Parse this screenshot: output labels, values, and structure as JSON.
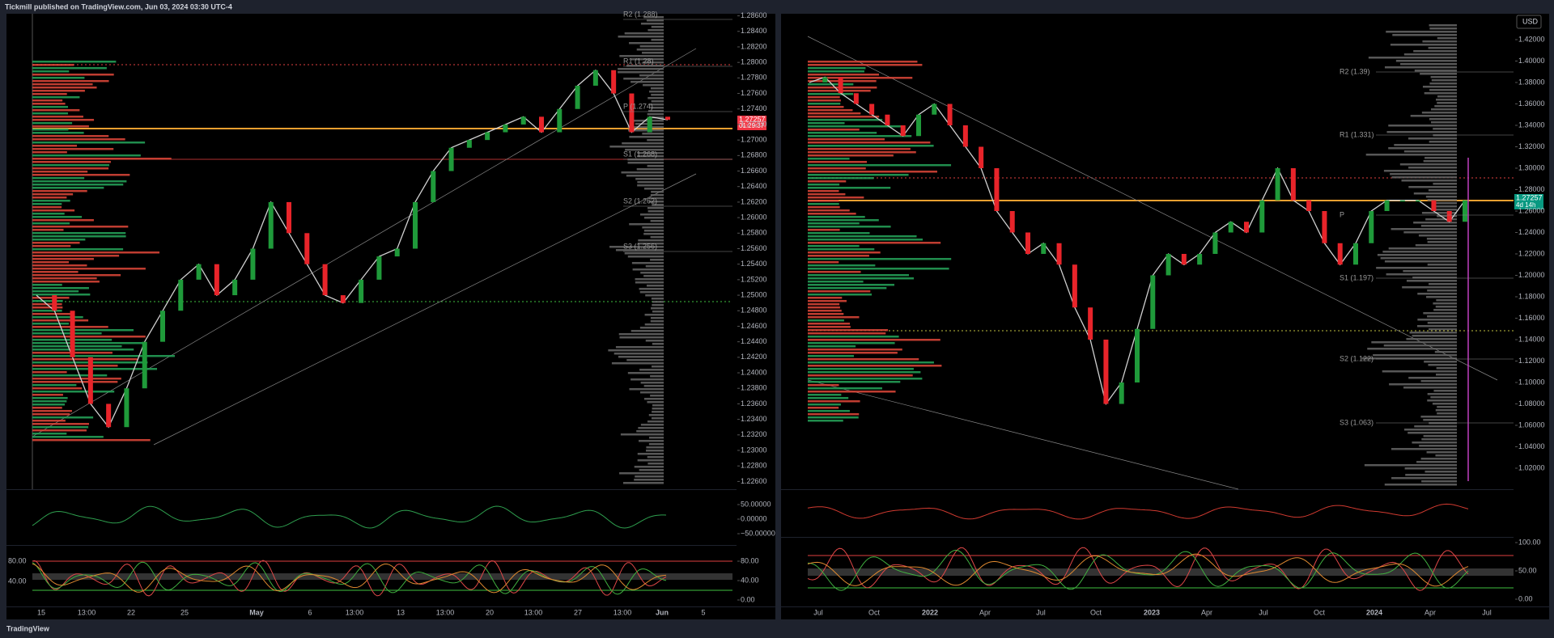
{
  "header": {
    "title": "Tickmill published on TradingView.com, Jun 03, 2024 03:30 UTC-4"
  },
  "footer": {
    "brand": "TradingView"
  },
  "left": {
    "yticks": [
      {
        "value": 1.286,
        "label": "1.28600"
      },
      {
        "value": 1.284,
        "label": "1.28400"
      },
      {
        "value": 1.282,
        "label": "1.28200"
      },
      {
        "value": 1.28,
        "label": "1.28000"
      },
      {
        "value": 1.278,
        "label": "1.27800"
      },
      {
        "value": 1.276,
        "label": "1.27600"
      },
      {
        "value": 1.274,
        "label": "1.27400"
      },
      {
        "value": 1.272,
        "label": "1.27200"
      },
      {
        "value": 1.27,
        "label": "1.27000"
      },
      {
        "value": 1.268,
        "label": "1.26800"
      },
      {
        "value": 1.266,
        "label": "1.26600"
      },
      {
        "value": 1.264,
        "label": "1.26400"
      },
      {
        "value": 1.262,
        "label": "1.26200"
      },
      {
        "value": 1.26,
        "label": "1.26000"
      },
      {
        "value": 1.258,
        "label": "1.25800"
      },
      {
        "value": 1.256,
        "label": "1.25600"
      },
      {
        "value": 1.254,
        "label": "1.25400"
      },
      {
        "value": 1.252,
        "label": "1.25200"
      },
      {
        "value": 1.25,
        "label": "1.25000"
      },
      {
        "value": 1.248,
        "label": "1.24800"
      },
      {
        "value": 1.246,
        "label": "1.24600"
      },
      {
        "value": 1.244,
        "label": "1.24400"
      },
      {
        "value": 1.242,
        "label": "1.24200"
      },
      {
        "value": 1.24,
        "label": "1.24000"
      },
      {
        "value": 1.238,
        "label": "1.23800"
      },
      {
        "value": 1.236,
        "label": "1.23600"
      },
      {
        "value": 1.234,
        "label": "1.23400"
      },
      {
        "value": 1.232,
        "label": "1.23200"
      },
      {
        "value": 1.23,
        "label": "1.23000"
      },
      {
        "value": 1.228,
        "label": "1.22800"
      },
      {
        "value": 1.226,
        "label": "1.22600"
      }
    ],
    "close": [
      1.25,
      1.248,
      1.242,
      1.236,
      1.233,
      1.238,
      1.244,
      1.248,
      1.252,
      1.254,
      1.25,
      1.252,
      1.256,
      1.262,
      1.258,
      1.254,
      1.25,
      1.249,
      1.252,
      1.255,
      1.256,
      1.262,
      1.266,
      1.269,
      1.27,
      1.271,
      1.272,
      1.273,
      1.271,
      1.274,
      1.277,
      1.279,
      1.276,
      1.271,
      1.273,
      1.2726
    ],
    "pivots": [
      "R2 (1.288)",
      "R1 (1.28)",
      "P (1.274)",
      "S1 (1.268)",
      "S2 (1.262)",
      "S3 (1.256)"
    ],
    "price_tag": {
      "price": "1.27257",
      "countdown": "01:29:37"
    },
    "osc1_ticks": [
      {
        "value": 50,
        "label": "50.00000"
      },
      {
        "value": 0,
        "label": "0.00000"
      },
      {
        "value": -50,
        "label": "−50.00000"
      }
    ],
    "osc2_ticks": [
      {
        "value": 80,
        "label": "80.00"
      },
      {
        "value": 40,
        "label": "40.00"
      },
      {
        "value": 0,
        "label": "0.00"
      }
    ],
    "osc2_inner": [
      "80.00",
      "40.00"
    ],
    "xlabels": [
      "15",
      "13:00",
      "22",
      "25",
      "May",
      "6",
      "13:00",
      "13",
      "13:00",
      "20",
      "13:00",
      "27",
      "13:00",
      "Jun",
      "5"
    ]
  },
  "right": {
    "currency": "USD",
    "yticks": [
      {
        "value": 1.42,
        "label": "1.42000"
      },
      {
        "value": 1.4,
        "label": "1.40000"
      },
      {
        "value": 1.38,
        "label": "1.38000"
      },
      {
        "value": 1.36,
        "label": "1.36000"
      },
      {
        "value": 1.34,
        "label": "1.34000"
      },
      {
        "value": 1.32,
        "label": "1.32000"
      },
      {
        "value": 1.3,
        "label": "1.30000"
      },
      {
        "value": 1.28,
        "label": "1.28000"
      },
      {
        "value": 1.26,
        "label": "1.26000"
      },
      {
        "value": 1.24,
        "label": "1.24000"
      },
      {
        "value": 1.22,
        "label": "1.22000"
      },
      {
        "value": 1.2,
        "label": "1.20000"
      },
      {
        "value": 1.18,
        "label": "1.18000"
      },
      {
        "value": 1.16,
        "label": "1.16000"
      },
      {
        "value": 1.14,
        "label": "1.14000"
      },
      {
        "value": 1.12,
        "label": "1.12000"
      },
      {
        "value": 1.1,
        "label": "1.10000"
      },
      {
        "value": 1.08,
        "label": "1.08000"
      },
      {
        "value": 1.06,
        "label": "1.06000"
      },
      {
        "value": 1.04,
        "label": "1.04000"
      },
      {
        "value": 1.02,
        "label": "1.02000"
      }
    ],
    "close": [
      1.38,
      1.385,
      1.37,
      1.36,
      1.35,
      1.34,
      1.33,
      1.35,
      1.36,
      1.34,
      1.32,
      1.3,
      1.26,
      1.24,
      1.22,
      1.23,
      1.21,
      1.17,
      1.14,
      1.08,
      1.1,
      1.15,
      1.2,
      1.22,
      1.21,
      1.22,
      1.24,
      1.25,
      1.24,
      1.27,
      1.3,
      1.27,
      1.26,
      1.23,
      1.21,
      1.23,
      1.26,
      1.27,
      1.27,
      1.27,
      1.26,
      1.25,
      1.27
    ],
    "pivots": [
      "R2 (1.39)",
      "R1 (1.331)",
      "P",
      "S1 (1.197)",
      "S2 (1.122)",
      "S3 (1.063)"
    ],
    "price_tag": {
      "price": "1.27257",
      "countdown": "4d 14h"
    },
    "osc2_ticks": [
      {
        "value": 100,
        "label": "100.00"
      },
      {
        "value": 50,
        "label": "50.00"
      },
      {
        "value": 0,
        "label": "0.00"
      }
    ],
    "xlabels": [
      "Jul",
      "Oct",
      "2022",
      "Apr",
      "Jul",
      "Oct",
      "2023",
      "Apr",
      "Jul",
      "Oct",
      "2024",
      "Apr",
      "Jul"
    ]
  }
}
